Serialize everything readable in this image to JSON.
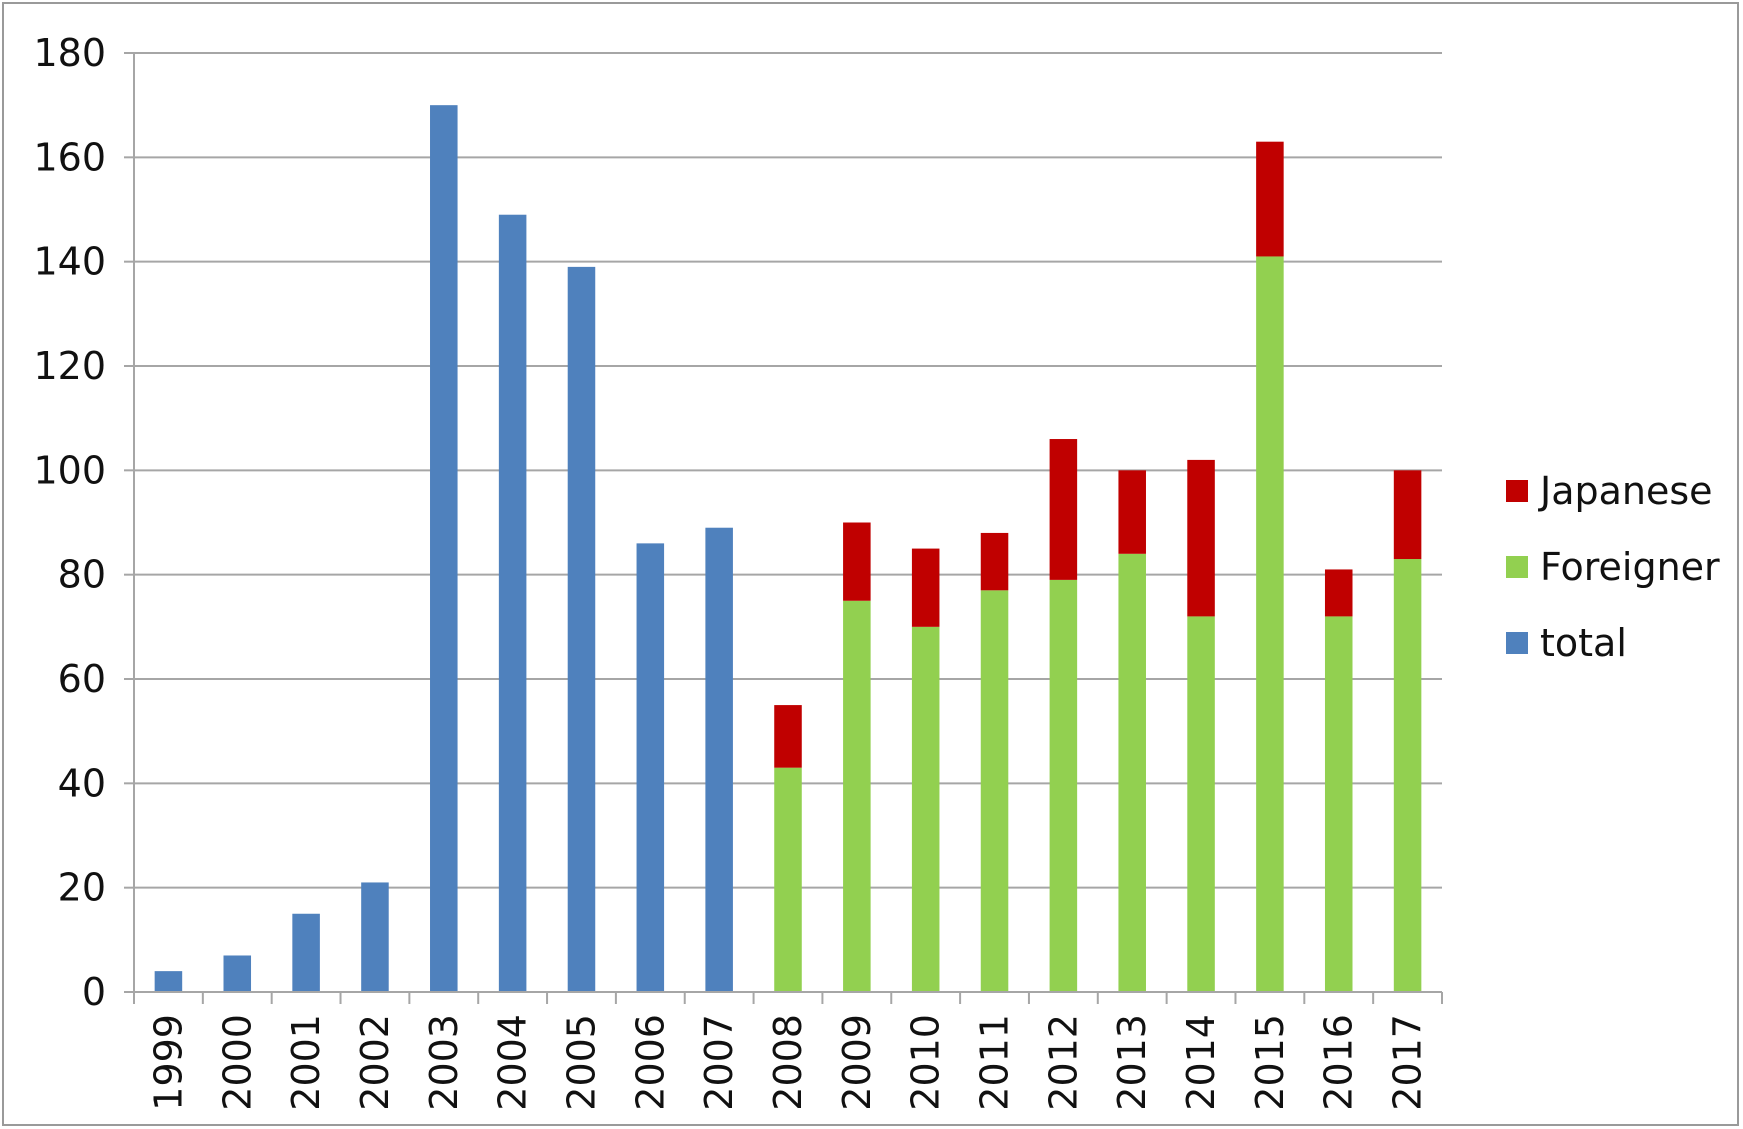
{
  "chart_data": {
    "type": "bar",
    "stacked": true,
    "categories": [
      "1999",
      "2000",
      "2001",
      "2002",
      "2003",
      "2004",
      "2005",
      "2006",
      "2007",
      "2008",
      "2009",
      "2010",
      "2011",
      "2012",
      "2013",
      "2014",
      "2015",
      "2016",
      "2017"
    ],
    "series": [
      {
        "name": "total",
        "color": "#4f81bd",
        "values": [
          4,
          7,
          15,
          21,
          170,
          149,
          139,
          86,
          89,
          null,
          null,
          null,
          null,
          null,
          null,
          null,
          null,
          null,
          null
        ]
      },
      {
        "name": "Foreigner",
        "color": "#92d050",
        "values": [
          null,
          null,
          null,
          null,
          null,
          null,
          null,
          null,
          null,
          43,
          75,
          70,
          77,
          79,
          84,
          72,
          141,
          72,
          83
        ]
      },
      {
        "name": "Japanese",
        "color": "#c00000",
        "values": [
          null,
          null,
          null,
          null,
          null,
          null,
          null,
          null,
          null,
          12,
          15,
          15,
          11,
          27,
          16,
          30,
          22,
          9,
          17
        ]
      }
    ],
    "y_ticks": [
      "0",
      "20",
      "40",
      "60",
      "80",
      "100",
      "120",
      "140",
      "160",
      "180"
    ],
    "ylim": [
      0,
      180
    ],
    "grid": true,
    "legend": {
      "position": "right",
      "entries": [
        {
          "label": "Japanese",
          "color": "#c00000"
        },
        {
          "label": "Foreigner",
          "color": "#92d050"
        },
        {
          "label": "total",
          "color": "#4f81bd"
        }
      ]
    },
    "title": "",
    "xlabel": "",
    "ylabel": ""
  }
}
